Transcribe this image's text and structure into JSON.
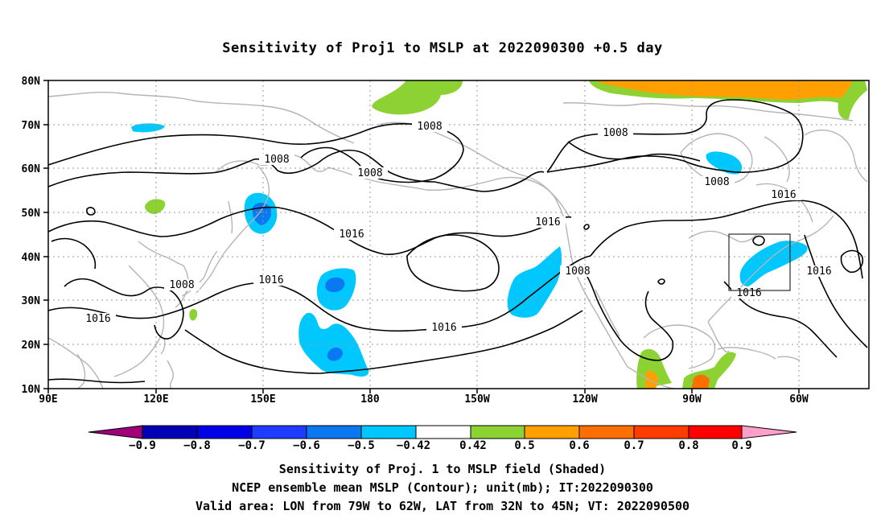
{
  "title": "Sensitivity of Proj1 to MSLP at 2022090300 +0.5 day",
  "map": {
    "lon_labels": [
      "90E",
      "120E",
      "150E",
      "180",
      "150W",
      "120W",
      "90W",
      "60W"
    ],
    "lat_labels": [
      "80N",
      "70N",
      "60N",
      "50N",
      "40N",
      "30N",
      "20N",
      "10N"
    ],
    "contour_labels": [
      "1008",
      "1008",
      "1008",
      "1008",
      "1008",
      "1008",
      "1008",
      "1016",
      "1016",
      "1016",
      "1016",
      "1016",
      "1016",
      "1016",
      "1016"
    ],
    "colors": {
      "neg_strong": "#0000b4",
      "neg_mid": "#0a50dc",
      "neg_weak": "#00c8ff",
      "pos_weak": "#8cd232",
      "pos_mid": "#ff9600",
      "pos_strong": "#ff5a00",
      "coast": "#b4b4b4",
      "contour": "#000000"
    }
  },
  "colorbar": {
    "ticks": [
      "−0.9",
      "−0.8",
      "−0.7",
      "−0.6",
      "−0.5",
      "−0.42",
      "0.42",
      "0.5",
      "0.6",
      "0.7",
      "0.8",
      "0.9"
    ],
    "colors": [
      "#a0007a",
      "#0000b4",
      "#0000e6",
      "#1e3cff",
      "#0a78f0",
      "#00c8ff",
      "#ffffff",
      "#8cd232",
      "#ffa000",
      "#ff6e00",
      "#ff3c00",
      "#ff0000",
      "#ffa0c8"
    ]
  },
  "captions": {
    "line1": "Sensitivity of Proj. 1 to MSLP field (Shaded)",
    "line2": "NCEP ensemble mean MSLP (Contour); unit(mb); IT:2022090300",
    "line3": "Valid area: LON from 79W to 62W, LAT from 32N to 45N; VT: 2022090500"
  }
}
